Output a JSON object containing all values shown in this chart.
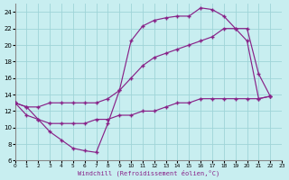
{
  "xlabel": "Windchill (Refroidissement éolien,°C)",
  "bg_color": "#c8eef0",
  "grid_color": "#9fd4d8",
  "line_color": "#882288",
  "xlim": [
    0,
    23
  ],
  "ylim": [
    6,
    25
  ],
  "yticks": [
    6,
    8,
    10,
    12,
    14,
    16,
    18,
    20,
    22,
    24
  ],
  "xticks": [
    0,
    1,
    2,
    3,
    4,
    5,
    6,
    7,
    8,
    9,
    10,
    11,
    12,
    13,
    14,
    15,
    16,
    17,
    18,
    19,
    20,
    21,
    22,
    23
  ],
  "line1_x": [
    0,
    1,
    2,
    3,
    4,
    5,
    6,
    7,
    8,
    9,
    10,
    11,
    12,
    13,
    14,
    15,
    16,
    17,
    18,
    19,
    20,
    21,
    22
  ],
  "line1_y": [
    13,
    12.5,
    11,
    9.5,
    8.5,
    7.5,
    7.2,
    7.0,
    10.5,
    14.5,
    20.5,
    22.3,
    23.0,
    23.3,
    23.5,
    23.5,
    24.5,
    24.3,
    23.5,
    22.0,
    20.5,
    13.5,
    13.8
  ],
  "line2_x": [
    0,
    1,
    2,
    3,
    4,
    5,
    6,
    7,
    8,
    9,
    10,
    11,
    12,
    13,
    14,
    15,
    16,
    17,
    18,
    19,
    20,
    21,
    22
  ],
  "line2_y": [
    13,
    11.5,
    11,
    10.5,
    10.5,
    10.5,
    10.5,
    11,
    11,
    11.5,
    11.5,
    12,
    12,
    12.5,
    13,
    13,
    13.5,
    13.5,
    13.5,
    13.5,
    13.5,
    13.5,
    13.8
  ],
  "line3_x": [
    0,
    1,
    2,
    3,
    4,
    5,
    6,
    7,
    8,
    9,
    10,
    11,
    12,
    13,
    14,
    15,
    16,
    17,
    18,
    19,
    20,
    21,
    22
  ],
  "line3_y": [
    13,
    12.5,
    12.5,
    13,
    13,
    13,
    13,
    13,
    13.5,
    14.5,
    16,
    17.5,
    18.5,
    19,
    19.5,
    20,
    20.5,
    21,
    22,
    22,
    22,
    16.5,
    13.8
  ]
}
